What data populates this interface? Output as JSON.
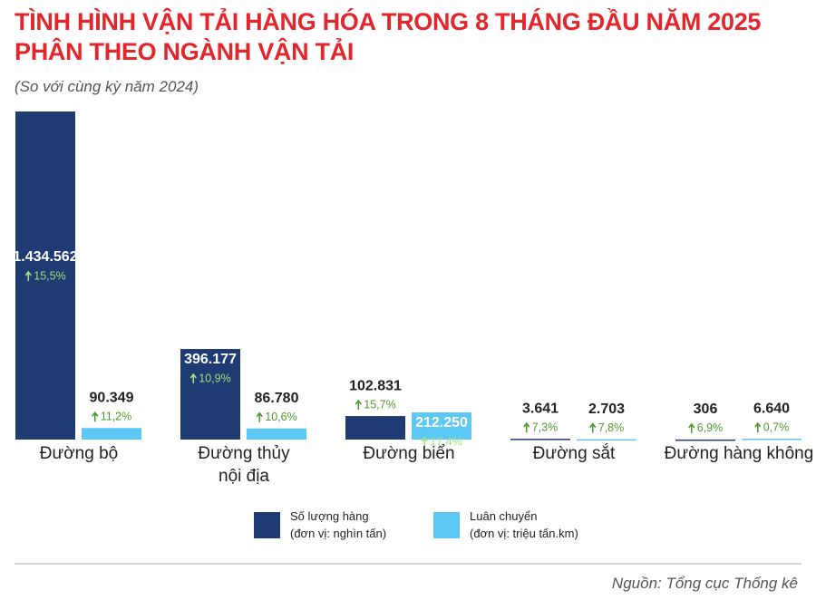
{
  "chart_data": {
    "type": "bar",
    "title": "TÌNH HÌNH VẬN TẢI HÀNG HÓA TRONG 8 THÁNG ĐẦU NĂM 2025\nPHÂN THEO NGÀNH VẬN TẢI",
    "subtitle": "(So với cùng kỳ năm 2024)",
    "source": "Nguồn: Tổng cục Thống kê",
    "categories": [
      "Đường bộ",
      "Đường thủy\nnội địa",
      "Đường biển",
      "Đường sắt",
      "Đường hàng không"
    ],
    "series": [
      {
        "name": "Số lượng hàng",
        "unit": "(đơn vị: nghìn tấn)",
        "color": "#1f3b73",
        "values": [
          1434562,
          396177,
          102831,
          3641,
          306
        ],
        "value_labels": [
          "1.434.562",
          "396.177",
          "102.831",
          "3.641",
          "306"
        ],
        "growth": [
          15.5,
          10.9,
          15.7,
          7.3,
          6.9
        ],
        "growth_labels": [
          "15,5%",
          "10,9%",
          "15,7%",
          "7,3%",
          "6,9%"
        ]
      },
      {
        "name": "Luân chuyển",
        "unit": "(đơn vị: triệu tấn.km)",
        "color": "#5cc8f5",
        "values": [
          90349,
          86780,
          212250,
          2703,
          6640
        ],
        "value_labels": [
          "90.349",
          "86.780",
          "212.250",
          "2.703",
          "6.640"
        ],
        "growth": [
          11.2,
          10.6,
          17.4,
          7.8,
          0.7
        ],
        "growth_labels": [
          "11,2%",
          "10,6%",
          "17,4%",
          "7,8%",
          "0,7%"
        ]
      }
    ]
  }
}
